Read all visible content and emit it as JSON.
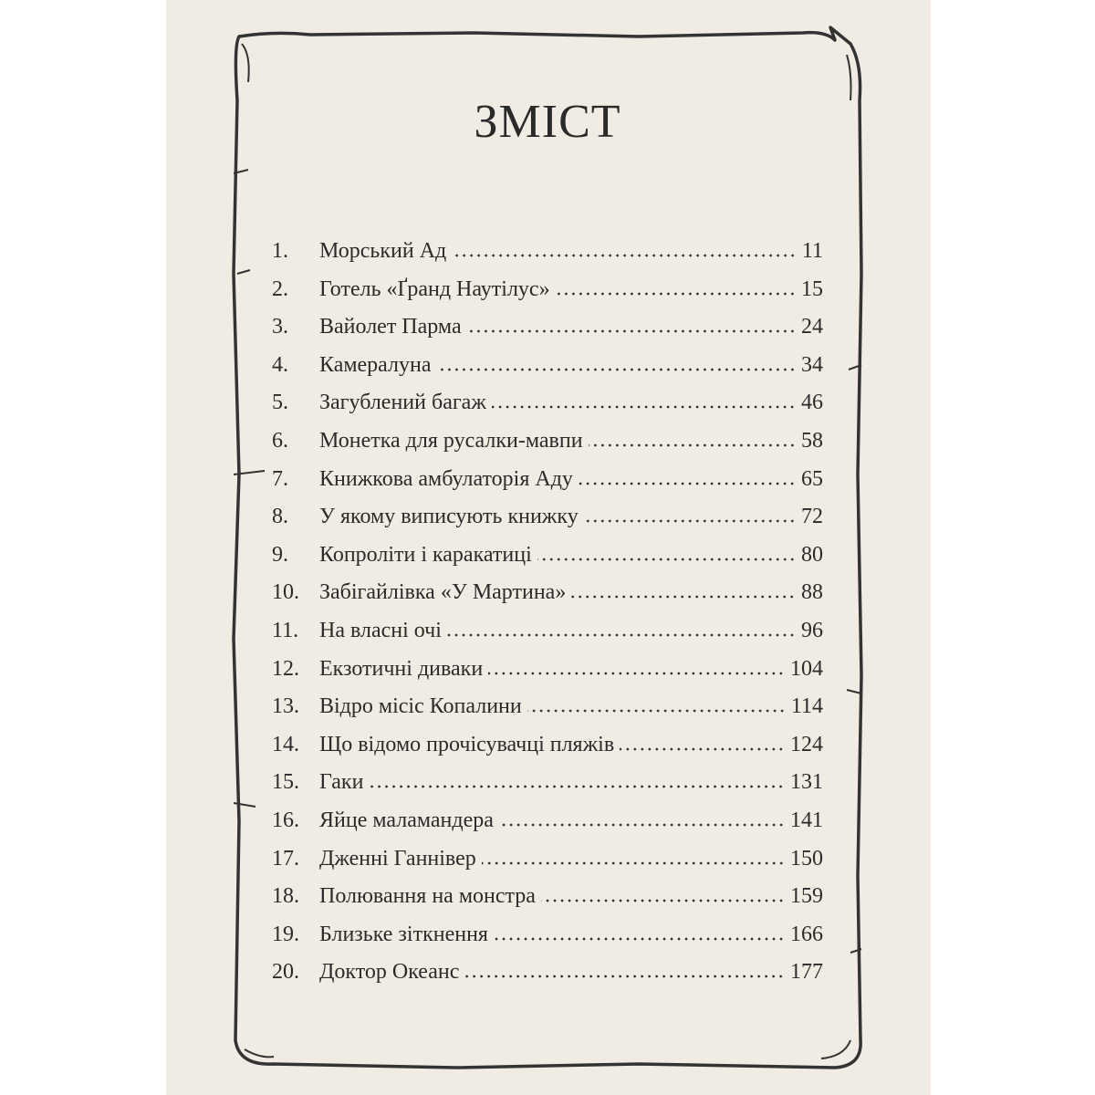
{
  "heading": "ЗМІСТ",
  "entries": [
    {
      "num": "1.",
      "title": "Морський Ад",
      "page": "11"
    },
    {
      "num": "2.",
      "title": "Готель «Ґранд Наутілус»",
      "page": "15"
    },
    {
      "num": "3.",
      "title": "Вайолет Парма",
      "page": "24"
    },
    {
      "num": "4.",
      "title": "Камералуна",
      "page": "34"
    },
    {
      "num": "5.",
      "title": "Загублений багаж",
      "page": "46"
    },
    {
      "num": "6.",
      "title": "Монетка для русалки-мавпи",
      "page": "58"
    },
    {
      "num": "7.",
      "title": "Книжкова амбулаторія Аду",
      "page": "65"
    },
    {
      "num": "8.",
      "title": "У якому виписують книжку",
      "page": "72"
    },
    {
      "num": "9.",
      "title": "Копроліти і каракатиці",
      "page": "80"
    },
    {
      "num": "10.",
      "title": "Забігайлівка «У Мартина»",
      "page": "88"
    },
    {
      "num": "11.",
      "title": "На власні очі",
      "page": "96"
    },
    {
      "num": "12.",
      "title": "Екзотичні диваки",
      "page": "104"
    },
    {
      "num": "13.",
      "title": "Відро місіс Копалини",
      "page": "114"
    },
    {
      "num": "14.",
      "title": "Що відомо прочісувачці пляжів",
      "page": "124"
    },
    {
      "num": "15.",
      "title": "Гаки",
      "page": "131"
    },
    {
      "num": "16.",
      "title": "Яйце маламандера",
      "page": "141"
    },
    {
      "num": "17.",
      "title": "Дженні Ганнівер",
      "page": "150"
    },
    {
      "num": "18.",
      "title": "Полювання на монстра",
      "page": "159"
    },
    {
      "num": "19.",
      "title": "Близьке зіткнення",
      "page": "166"
    },
    {
      "num": "20.",
      "title": "Доктор Океанс",
      "page": "177"
    }
  ]
}
